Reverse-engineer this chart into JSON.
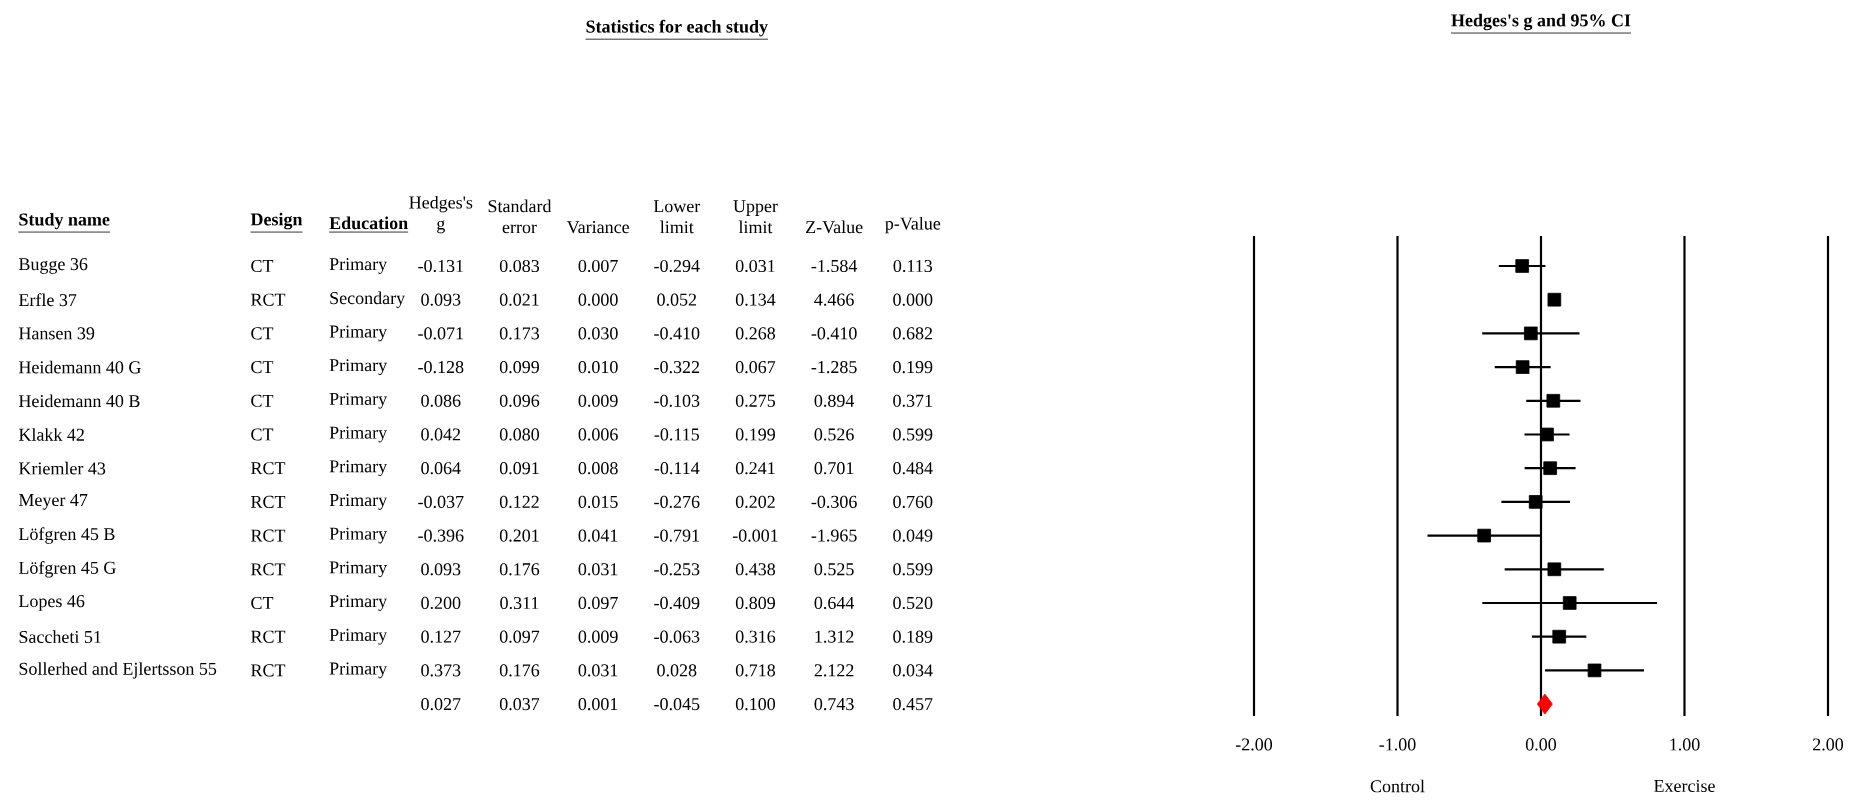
{
  "chart_data": [
    {
      "type": "heatmap",
      "title": "Statistics for each study",
      "ylabel": "Study name",
      "categories": [
        "Design",
        "Education",
        "Hedges's g",
        "Standard error",
        "Variance",
        "Lower limit",
        "Upper limit",
        "Z-Value",
        "p-Value"
      ],
      "y_categories": [
        "Bugge 36",
        "Erfle 37",
        "Hansen 39",
        "Heidemann 40 G",
        "Heidemann 40 B",
        "Klakk 42",
        "Kriemler 43",
        "Meyer 47",
        "Löfgren 45 B",
        "Löfgren 45 G",
        "Lopes 46",
        "Saccheti 51",
        "Sollerhed and Ejlertsson 55",
        null
      ],
      "cells": [
        [
          null,
          null,
          -0.131,
          0.083,
          0.007,
          -0.294,
          0.031,
          -1.584,
          0.113
        ],
        [
          null,
          null,
          0.093,
          0.021,
          0.0,
          0.052,
          0.134,
          4.466,
          0.0
        ],
        [
          null,
          null,
          -0.071,
          0.173,
          0.03,
          -0.41,
          0.268,
          -0.41,
          0.682
        ],
        [
          null,
          null,
          -0.128,
          0.099,
          0.01,
          -0.322,
          0.067,
          -1.285,
          0.199
        ],
        [
          null,
          null,
          0.086,
          0.096,
          0.009,
          -0.103,
          0.275,
          0.894,
          0.371
        ],
        [
          null,
          null,
          0.042,
          0.08,
          0.006,
          -0.115,
          0.199,
          0.526,
          0.599
        ],
        [
          null,
          null,
          0.064,
          0.091,
          0.008,
          -0.114,
          0.241,
          0.701,
          0.484
        ],
        [
          null,
          null,
          -0.037,
          0.122,
          0.015,
          -0.276,
          0.202,
          -0.306,
          0.76
        ],
        [
          null,
          null,
          -0.396,
          0.201,
          0.041,
          -0.791,
          -0.001,
          -1.965,
          0.049
        ],
        [
          null,
          null,
          0.093,
          0.176,
          0.031,
          -0.253,
          0.438,
          0.525,
          0.599
        ],
        [
          null,
          null,
          0.2,
          0.311,
          0.097,
          -0.409,
          0.809,
          0.644,
          0.52
        ],
        [
          null,
          null,
          0.127,
          0.097,
          0.009,
          -0.063,
          0.316,
          1.312,
          0.189
        ],
        [
          null,
          null,
          0.373,
          0.176,
          0.031,
          0.028,
          0.718,
          2.122,
          0.034
        ],
        [
          null,
          null,
          0.027,
          0.037,
          0.001,
          -0.045,
          0.1,
          0.743,
          0.457
        ]
      ],
      "cell_labels": [
        [
          "CT",
          "Primary",
          "-0.131",
          "0.083",
          "0.007",
          "-0.294",
          "0.031",
          "-1.584",
          "0.113"
        ],
        [
          "RCT",
          "Secondary",
          "0.093",
          "0.021",
          "0.000",
          "0.052",
          "0.134",
          "4.466",
          "0.000"
        ],
        [
          "CT",
          "Primary",
          "-0.071",
          "0.173",
          "0.030",
          "-0.410",
          "0.268",
          "-0.410",
          "0.682"
        ],
        [
          "CT",
          "Primary",
          "-0.128",
          "0.099",
          "0.010",
          "-0.322",
          "0.067",
          "-1.285",
          "0.199"
        ],
        [
          "CT",
          "Primary",
          "0.086",
          "0.096",
          "0.009",
          "-0.103",
          "0.275",
          "0.894",
          "0.371"
        ],
        [
          "CT",
          "Primary",
          "0.042",
          "0.080",
          "0.006",
          "-0.115",
          "0.199",
          "0.526",
          "0.599"
        ],
        [
          "RCT",
          "Primary",
          "0.064",
          "0.091",
          "0.008",
          "-0.114",
          "0.241",
          "0.701",
          "0.484"
        ],
        [
          "RCT",
          "Primary",
          "-0.037",
          "0.122",
          "0.015",
          "-0.276",
          "0.202",
          "-0.306",
          "0.760"
        ],
        [
          "RCT",
          "Primary",
          "-0.396",
          "0.201",
          "0.041",
          "-0.791",
          "-0.001",
          "-1.965",
          "0.049"
        ],
        [
          "RCT",
          "Primary",
          "0.093",
          "0.176",
          "0.031",
          "-0.253",
          "0.438",
          "0.525",
          "0.599"
        ],
        [
          "CT",
          "Primary",
          "0.200",
          "0.311",
          "0.097",
          "-0.409",
          "0.809",
          "0.644",
          "0.520"
        ],
        [
          "RCT",
          "Primary",
          "0.127",
          "0.097",
          "0.009",
          "-0.063",
          "0.316",
          "1.312",
          "0.189"
        ],
        [
          "RCT",
          "Primary",
          "0.373",
          "0.176",
          "0.031",
          "0.028",
          "0.718",
          "2.122",
          "0.034"
        ],
        [
          null,
          null,
          "0.027",
          "0.037",
          "0.001",
          "-0.045",
          "0.100",
          "0.743",
          "0.457"
        ]
      ]
    },
    {
      "type": "scatter",
      "orientation": "horizontal",
      "title": "Hedges's g and 95% CI",
      "categories": [
        null,
        null,
        null,
        null,
        null,
        null,
        null,
        null,
        null,
        null,
        null,
        null,
        null,
        null
      ],
      "xlim": [
        -2,
        2
      ],
      "xticks": [
        {
          "value": -2,
          "label": "-2.00"
        },
        {
          "value": -1,
          "label": "-1.00"
        },
        {
          "value": 0,
          "label": "0.00"
        },
        {
          "value": 1,
          "label": "1.00"
        },
        {
          "value": 2,
          "label": "2.00"
        }
      ],
      "grid": "x",
      "tick_labels": "x",
      "annotations": [
        "Control",
        "Exercise"
      ],
      "series": [
        {
          "color": "#000000",
          "marker": "square",
          "values": [
            -0.131,
            0.093,
            -0.071,
            -0.128,
            0.086,
            0.042,
            0.064,
            -0.037,
            -0.396,
            0.093,
            0.2,
            0.127,
            0.373,
            null
          ],
          "errors": [
            [
              -0.294,
              0.031
            ],
            [
              0.052,
              0.134
            ],
            [
              -0.41,
              0.268
            ],
            [
              -0.322,
              0.067
            ],
            [
              -0.103,
              0.275
            ],
            [
              -0.115,
              0.199
            ],
            [
              -0.114,
              0.241
            ],
            [
              -0.276,
              0.202
            ],
            [
              -0.791,
              -0.001
            ],
            [
              -0.253,
              0.438
            ],
            [
              -0.409,
              0.809
            ],
            [
              -0.063,
              0.316
            ],
            [
              0.028,
              0.718
            ],
            null
          ]
        },
        {
          "color": "#ff0000",
          "marker": "diamond",
          "values": [
            null,
            null,
            null,
            null,
            null,
            null,
            null,
            null,
            null,
            null,
            null,
            null,
            null,
            0.027
          ]
        }
      ]
    }
  ]
}
